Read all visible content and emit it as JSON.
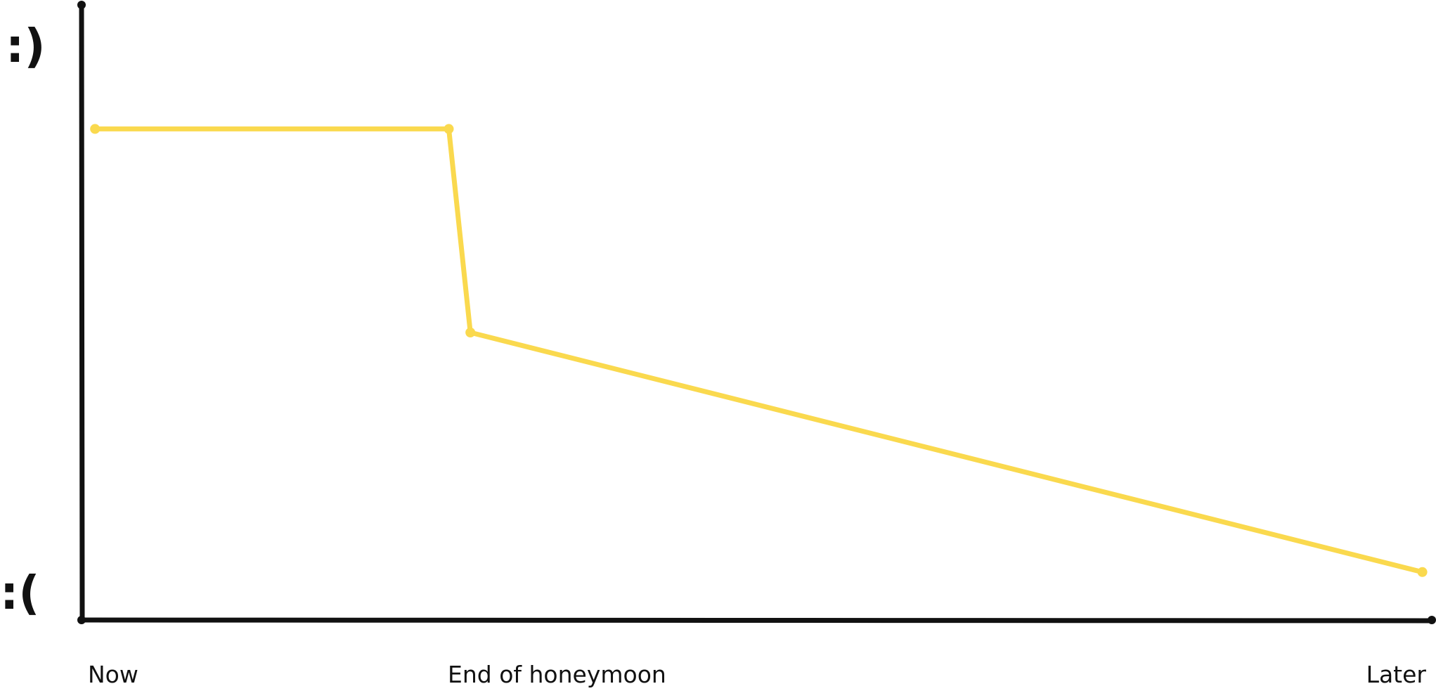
{
  "chart_data": {
    "type": "line",
    "title": "",
    "xlabel": "",
    "ylabel": "",
    "y_top_label": ":)",
    "y_bottom_label": ":(",
    "x_tick_labels": [
      "Now",
      "End of honeymoon",
      "Later"
    ],
    "xlim": [
      0,
      1
    ],
    "ylim": [
      0,
      1
    ],
    "grid": false,
    "legend": "none",
    "series": [
      {
        "color": "#FAD94E",
        "points": [
          {
            "x": 0.01,
            "y": 0.82
          },
          {
            "x": 0.272,
            "y": 0.82
          },
          {
            "x": 0.288,
            "y": 0.48
          },
          {
            "x": 0.993,
            "y": 0.08
          }
        ]
      }
    ],
    "axis_color": "#111111"
  }
}
